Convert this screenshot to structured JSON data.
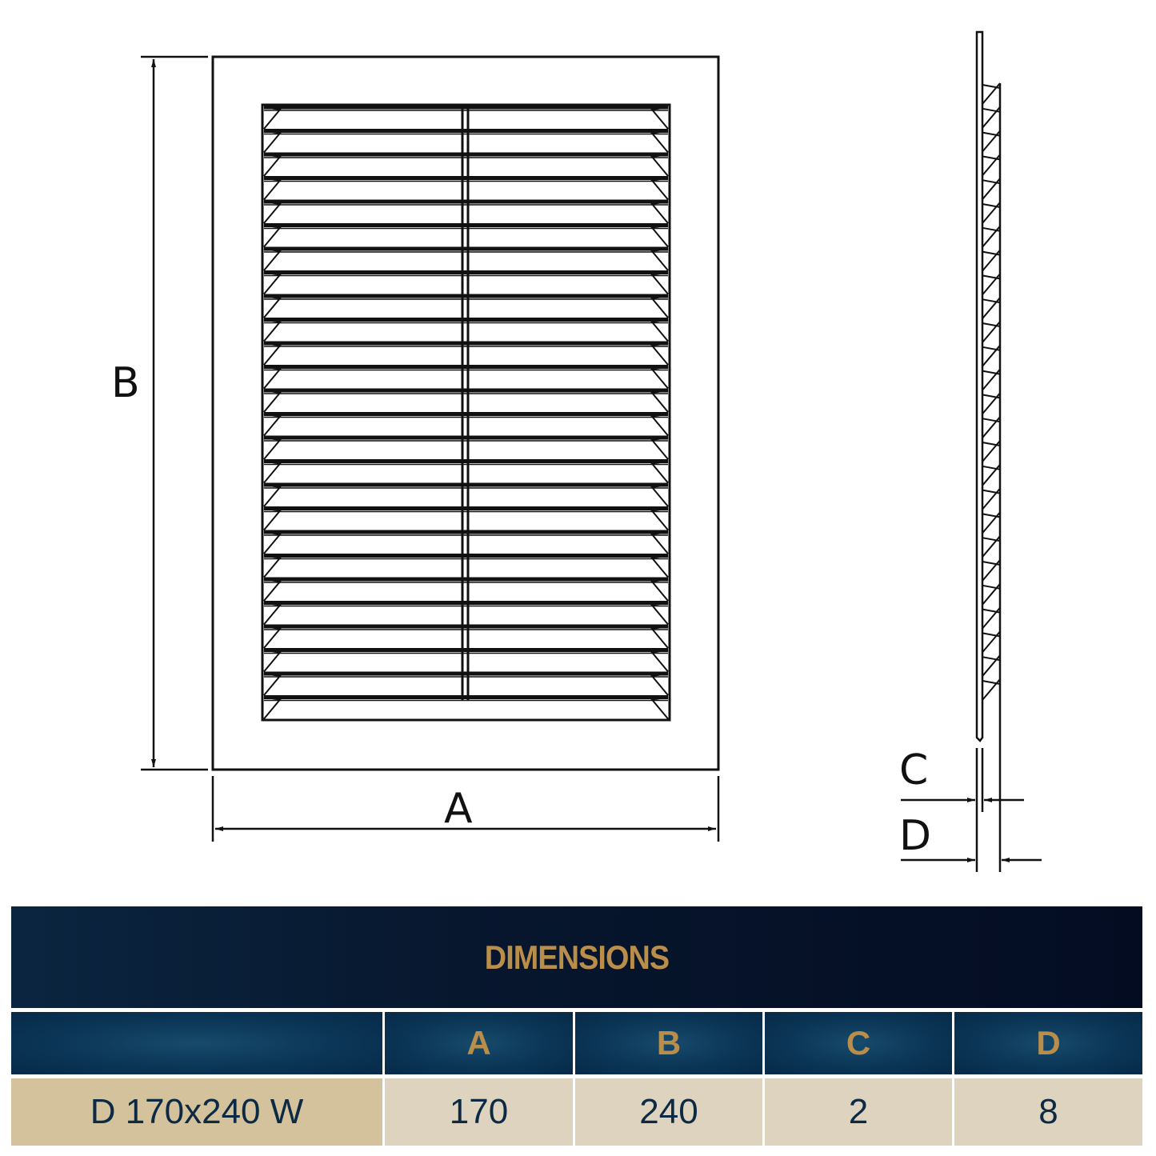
{
  "drawing": {
    "labels": {
      "width": "A",
      "height": "B",
      "C": "C",
      "D": "D"
    },
    "line_color": "#111111"
  },
  "table": {
    "title": "DIMENSIONS",
    "headers": [
      "",
      "A",
      "B",
      "C",
      "D"
    ],
    "rows": [
      [
        "D 170x240 W",
        "170",
        "240",
        "2",
        "8"
      ]
    ],
    "colors": {
      "title_bg": "#040c22",
      "header_bg": "#0b3556",
      "accent": "#b98d4a",
      "row_bg": "#ded3be",
      "row_first_bg": "#d3c29b",
      "text": "#0d2a44"
    }
  }
}
